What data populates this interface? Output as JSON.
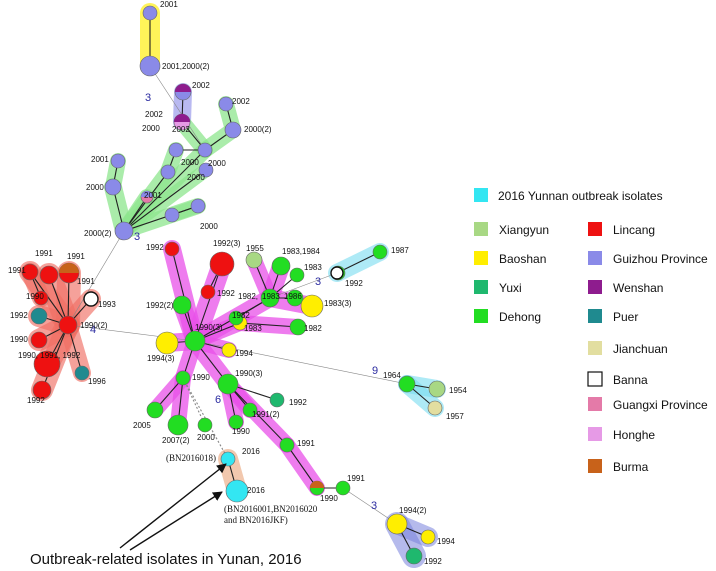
{
  "colors": {
    "outbreak": "#33e6f2",
    "xiangyun": "#a8d884",
    "baoshan": "#ffee00",
    "yuxi": "#1fb86e",
    "dehong": "#22dd22",
    "lincang": "#ee1111",
    "guizhou": "#8a8ae8",
    "wenshan": "#8e1c8e",
    "puer": "#1f8a8f",
    "jianchuan": "#e2dea0",
    "banna": "#ffffff",
    "guangxi": "#e47aa8",
    "honghe": "#e69ae6",
    "burma": "#c8621a"
  },
  "legend": {
    "outbreak_label": "2016 Yunnan outbreak isolates",
    "items": [
      {
        "key": "xiangyun",
        "label": "Xiangyun"
      },
      {
        "key": "lincang",
        "label": "Lincang"
      },
      {
        "key": "baoshan",
        "label": "Baoshan"
      },
      {
        "key": "guizhou",
        "label": "Guizhou Province"
      },
      {
        "key": "yuxi",
        "label": "Yuxi"
      },
      {
        "key": "wenshan",
        "label": "Wenshan"
      },
      {
        "key": "dehong",
        "label": "Dehong"
      },
      {
        "key": "puer",
        "label": "Puer"
      },
      {
        "key": "jianchuan",
        "label": "Jianchuan"
      },
      {
        "key": "banna",
        "label": "Banna"
      },
      {
        "key": "guangxi",
        "label": "Guangxi Province"
      },
      {
        "key": "honghe",
        "label": "Honghe"
      },
      {
        "key": "burma",
        "label": "Burma"
      }
    ]
  },
  "node_labels": [
    "2001",
    "2001,2000(2)",
    "3",
    "2002",
    "2002",
    "2002",
    "2002",
    "2000",
    "2000(2)",
    "2001",
    "2000",
    "2000",
    "2000",
    "2001",
    "2000",
    "2000",
    "2000(2)",
    "3",
    "1955",
    "1983,1984",
    "1983",
    "1982,",
    "1983",
    "1986",
    "1983(3)",
    "1982",
    "1982",
    "1983",
    "1992",
    "1992(3)",
    "1992",
    "1992(2)",
    "1990(3)",
    "1994(3)",
    "1994",
    "1990",
    "1990(3)",
    "1992",
    "1991(2)",
    "2005",
    "2007(2)",
    "2000",
    "1990",
    "1991",
    "1991",
    "1990",
    "1994(2)",
    "1994",
    "1992",
    "3",
    "9",
    "1964",
    "1954",
    "1957",
    "1987",
    "1992",
    "3",
    "4",
    "1991",
    "1991",
    "1991",
    "1991",
    "1993",
    "1990",
    "1992",
    "1990(2)",
    "1990",
    "1990, 1991, 1992",
    "1996",
    "1992",
    "6",
    "2016",
    "2016"
  ],
  "annotations": {
    "bn2016018": "(BN2016018)",
    "bn_group_line1": "(BN2016001,BN2016020",
    "bn_group_line2": "and BN2016JKF)",
    "caption": "Outbreak-related isolates in Yunan, 2016"
  }
}
